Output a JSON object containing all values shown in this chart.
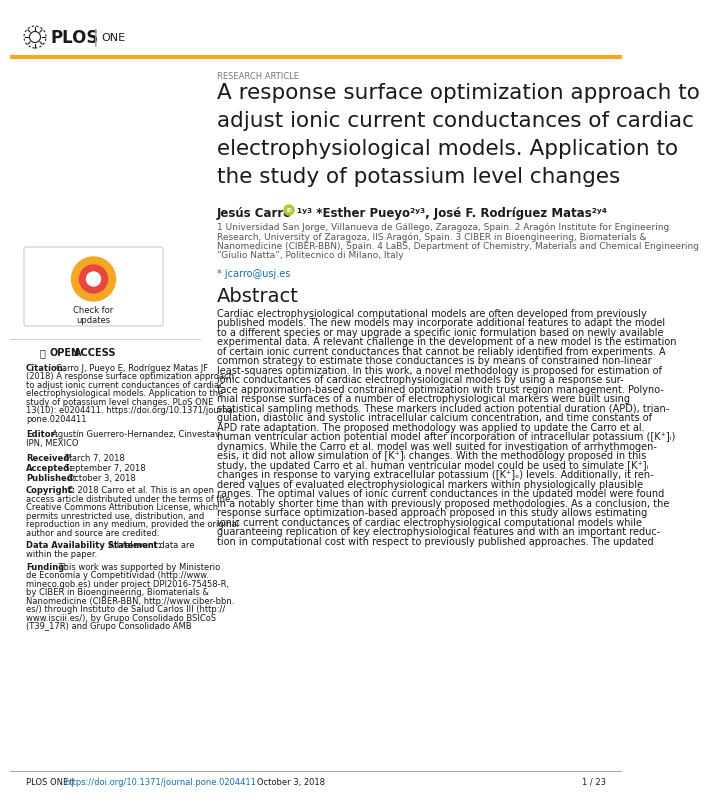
{
  "page_bg": "#ffffff",
  "orange_color": "#F5A623",
  "dark_color": "#1a1a1a",
  "blue_link": "#1a6daf",
  "gray_text": "#555555",
  "light_gray": "#aaaaaa",
  "research_article_label": "RESEARCH ARTICLE",
  "title_lines": [
    "A response surface optimization approach to",
    "adjust ionic current conductances of cardiac",
    "electrophysiological models. Application to",
    "the study of potassium level changes"
  ],
  "author_bold": "Jesús Carro",
  "author_rest": "¹ʸ³ *Esther Pueyo²ʸ³, José F. Rodríguez Matas²ʸ⁴",
  "affil_lines": [
    "1 Universidad San Jorge, Villanueva de Gállego, Zaragoza, Spain. 2 Aragón Institute for Engineering",
    "Research, University of Zaragoza, IIS Aragón, Spain. 3 CIBER in Bioengineering, Biomaterials &",
    "Nanomedicine (CIBER-BBN), Spain. 4 LaBS, Department of Chemistry, Materials and Chemical Engineering",
    "“Giulio Natta”, Politecnico di Milano, Italy"
  ],
  "email": "* jcarro@usj.es",
  "abstract_heading": "Abstract",
  "abstract_lines": [
    "Cardiac electrophysiological computational models are often developed from previously",
    "published models. The new models may incorporate additional features to adapt the model",
    "to a different species or may upgrade a specific ionic formulation based on newly available",
    "experimental data. A relevant challenge in the development of a new model is the estimation",
    "of certain ionic current conductances that cannot be reliably identified from experiments. A",
    "common strategy to estimate those conductances is by means of constrained non-linear",
    "least-squares optimization. In this work, a novel methodology is proposed for estimation of",
    "ionic conductances of cardiac electrophysiological models by using a response sur-",
    "face approximation-based constrained optimization with trust region management. Polyno-",
    "mial response surfaces of a number of electrophysiological markers were built using",
    "statistical sampling methods. These markers included action potential duration (APD), trian-",
    "gulation, diastolic and systolic intracellular calcium concentration, and time constants of",
    "APD rate adaptation. The proposed methodology was applied to update the Carro et al.",
    "human ventricular action potential model after incorporation of intracellular potassium ([K⁺]ᵢ)",
    "dynamics. While the Carro et al. model was well suited for investigation of arrhythmogen-",
    "esis, it did not allow simulation of [K⁺]ᵢ changes. With the methodology proposed in this",
    "study, the updated Carro et al. human ventricular model could be used to simulate [K⁺]ᵢ",
    "changes in response to varying extracellular potassium ([K⁺]ₒ) levels. Additionally, it ren-",
    "dered values of evaluated electrophysiological markers within physiologically plausible",
    "ranges. The optimal values of ionic current conductances in the updated model were found",
    "in a notably shorter time than with previously proposed methodologies. As a conclusion, the",
    "response surface optimization-based approach proposed in this study allows estimating",
    "ionic current conductances of cardiac electrophysiological computational models while",
    "guaranteeing replication of key electrophysiological features and with an important reduc-",
    "tion in computational cost with respect to previously published approaches. The updated"
  ],
  "left_cite_bold": "Citation:",
  "left_cite_text": " Carro J, Pueyo E, Rodríguez Matas JF (2018) A response surface optimization approach to adjust ionic current conductances of cardiac electrophysiological models. Application to the study of potassium level changes. PLoS ONE 13(10): e0204411. https://doi.org/10.1371/journal.pone.0204411",
  "left_cite_lines": [
    "Carro J, Pueyo E, Rodríguez Matas JF",
    "(2018) A response surface optimization approach",
    "to adjust ionic current conductances of cardiac",
    "electrophysiological models. Application to the",
    "study of potassium level changes. PLoS ONE",
    "13(10): e0204411. https://doi.org/10.1371/journal.",
    "pone.0204411"
  ],
  "left_editor_bold": "Editor:",
  "left_editor_lines": [
    "Agustín Guerrero-Hernandez, Cinvestav-",
    "IPN, MEXICO"
  ],
  "left_received": "Received:",
  "left_received_val": " March 7, 2018",
  "left_accepted": "Accepted:",
  "left_accepted_val": " September 7, 2018",
  "left_published": "Published:",
  "left_published_val": " October 3, 2018",
  "left_copy_bold": "Copyright:",
  "left_copy_lines": [
    " © 2018 Carro et al. This is an open",
    "access article distributed under the terms of the",
    "Creative Commons Attribution License, which",
    "permits unrestricted use, distribution, and",
    "reproduction in any medium, provided the original",
    "author and source are credited."
  ],
  "left_data_bold": "Data Availability Statement:",
  "left_data_lines": [
    " All relevant data are",
    "within the paper."
  ],
  "left_fund_bold": "Funding:",
  "left_fund_lines": [
    " This work was supported by Ministerio",
    "de Economía y Competitividad (http://www.",
    "mineco.gob.es) under project DPI2016-75458-R,",
    "by CIBER in Bioengineering, Biomaterials &",
    "Nanomedicine (CIBER-BBN, http://www.ciber-bbn.",
    "es/) through Instituto de Salud Carlos III (http://",
    "www.isciii.es/), by Grupo Consolidado BSICoS",
    "(T39_17R) and Grupo Consolidado AMB"
  ],
  "footer_plos": "PLOS ONE | ",
  "footer_url": "https://doi.org/10.1371/journal.pone.0204411",
  "footer_date": "   October 3, 2018",
  "footer_page": "1 / 23"
}
